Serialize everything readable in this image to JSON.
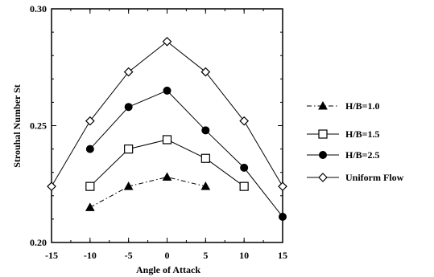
{
  "chart_data": {
    "type": "line",
    "xlabel": "Angle of Attack",
    "ylabel": "Strouhal Number St",
    "xlim": [
      -15,
      15
    ],
    "ylim": [
      0.2,
      0.3
    ],
    "xticks": [
      -15,
      -10,
      -5,
      0,
      5,
      10,
      15
    ],
    "yticks": [
      0.2,
      0.25,
      0.3
    ],
    "ytick_labels": [
      "0.20",
      "0.25",
      "0.30"
    ],
    "grid": false,
    "legend_position": "right",
    "series": [
      {
        "name": "H/B=1.0",
        "marker": "filled-triangle",
        "line": "dash-dot",
        "color": "#000000",
        "x": [
          -10,
          -5,
          0,
          5
        ],
        "y": [
          0.215,
          0.224,
          0.228,
          0.224
        ]
      },
      {
        "name": "H/B=1.5",
        "marker": "open-square",
        "line": "solid",
        "color": "#000000",
        "x": [
          -10,
          -5,
          0,
          5,
          10
        ],
        "y": [
          0.224,
          0.24,
          0.244,
          0.236,
          0.224
        ]
      },
      {
        "name": "H/B=2.5",
        "marker": "filled-circle",
        "line": "solid",
        "color": "#000000",
        "x": [
          -10,
          -5,
          0,
          5,
          10,
          15
        ],
        "y": [
          0.24,
          0.258,
          0.265,
          0.248,
          0.232,
          0.211
        ]
      },
      {
        "name": "Uniform Flow",
        "marker": "open-diamond",
        "line": "solid",
        "color": "#000000",
        "x": [
          -15,
          -10,
          -5,
          0,
          5,
          10,
          15
        ],
        "y": [
          0.224,
          0.252,
          0.273,
          0.286,
          0.273,
          0.252,
          0.224
        ]
      }
    ]
  }
}
